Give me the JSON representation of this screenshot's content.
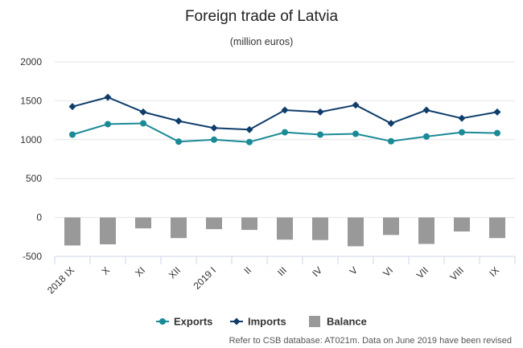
{
  "chart_data": {
    "type": "bar",
    "title": "Foreign trade of Latvia",
    "subtitle": "(million euros)",
    "categories": [
      "2018 IX",
      "X",
      "XI",
      "XII",
      "2019 I",
      "II",
      "III",
      "IV",
      "V",
      "VI",
      "VII",
      "VIII",
      "IX"
    ],
    "ylim": [
      -500,
      2000
    ],
    "yticks": [
      -500,
      0,
      500,
      1000,
      1500,
      2000
    ],
    "grid": true,
    "legend_position": "bottom",
    "series": [
      {
        "name": "Exports",
        "type": "line",
        "color": "#1a8a96",
        "marker": "circle",
        "values": [
          1065,
          1200,
          1210,
          975,
          1000,
          970,
          1095,
          1065,
          1075,
          980,
          1040,
          1095,
          1085
        ]
      },
      {
        "name": "Imports",
        "type": "line",
        "color": "#0f3d6b",
        "marker": "diamond",
        "values": [
          1425,
          1545,
          1355,
          1240,
          1150,
          1130,
          1380,
          1355,
          1445,
          1210,
          1380,
          1275,
          1355
        ]
      },
      {
        "name": "Balance",
        "type": "bar",
        "color": "#999999",
        "values": [
          -360,
          -345,
          -140,
          -265,
          -150,
          -160,
          -285,
          -290,
          -370,
          -225,
          -340,
          -180,
          -265
        ]
      }
    ],
    "footnote": "Refer to CSB database: AT021m. Data on June 2019 have been revised"
  }
}
